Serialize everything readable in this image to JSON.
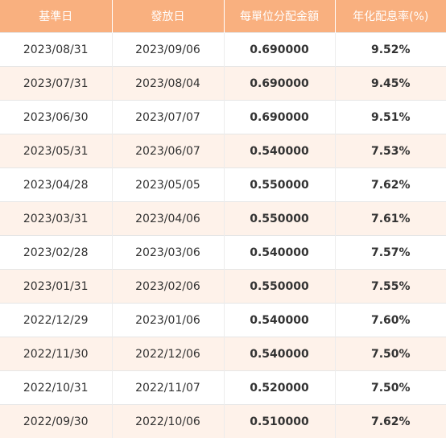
{
  "table": {
    "headers": [
      "基準日",
      "發放日",
      "每單位分配金額",
      "年化配息率(%)"
    ],
    "rows": [
      [
        "2023/08/31",
        "2023/09/06",
        "0.690000",
        "9.52%"
      ],
      [
        "2023/07/31",
        "2023/08/04",
        "0.690000",
        "9.45%"
      ],
      [
        "2023/06/30",
        "2023/07/07",
        "0.690000",
        "9.51%"
      ],
      [
        "2023/05/31",
        "2023/06/07",
        "0.540000",
        "7.53%"
      ],
      [
        "2023/04/28",
        "2023/05/05",
        "0.550000",
        "7.62%"
      ],
      [
        "2023/03/31",
        "2023/04/06",
        "0.550000",
        "7.61%"
      ],
      [
        "2023/02/28",
        "2023/03/06",
        "0.540000",
        "7.57%"
      ],
      [
        "2023/01/31",
        "2023/02/06",
        "0.550000",
        "7.55%"
      ],
      [
        "2022/12/29",
        "2023/01/06",
        "0.540000",
        "7.60%"
      ],
      [
        "2022/11/30",
        "2022/12/06",
        "0.540000",
        "7.50%"
      ],
      [
        "2022/10/31",
        "2022/11/07",
        "0.520000",
        "7.50%"
      ],
      [
        "2022/09/30",
        "2022/10/06",
        "0.510000",
        "7.62%"
      ]
    ]
  },
  "colors": {
    "header_bg": "#f9b07f",
    "header_text": "#ffffff",
    "row_alt_bg": "#fef2ea",
    "row_bg": "#ffffff"
  }
}
